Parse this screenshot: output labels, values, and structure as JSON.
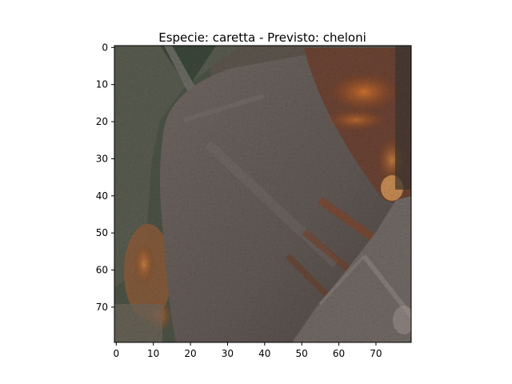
{
  "figure": {
    "title": "Especie: caretta - Previsto: cheloni"
  },
  "image_description": {
    "subject": "close-up of turtle head/scale, brownish-grey with orange-rust texture",
    "palette": [
      "#5e5752",
      "#6a625c",
      "#3f4a3c",
      "#8a4a24",
      "#c06a2e",
      "#7c746e",
      "#9b8f88"
    ]
  },
  "axes": {
    "x_ticks": [
      "0",
      "10",
      "20",
      "30",
      "40",
      "50",
      "60",
      "70"
    ],
    "y_ticks": [
      "0",
      "10",
      "20",
      "30",
      "40",
      "50",
      "60",
      "70"
    ],
    "x_range": [
      -0.5,
      79.5
    ],
    "y_range": [
      -0.5,
      79.5
    ]
  }
}
